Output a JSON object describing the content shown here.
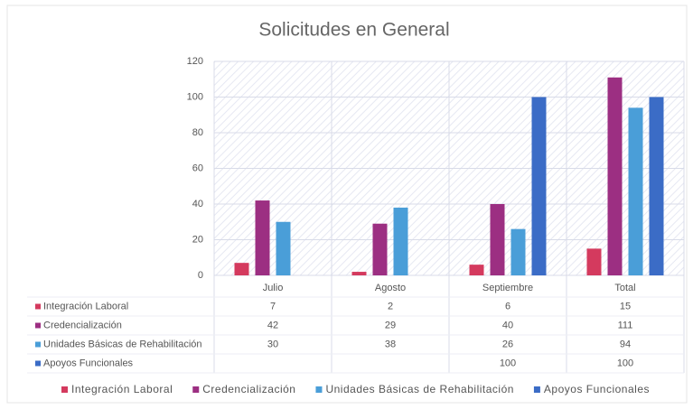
{
  "chart_data": {
    "type": "bar",
    "title": "Solicitudes en General",
    "categories": [
      "Julio",
      "Agosto",
      "Septiembre",
      "Total"
    ],
    "series": [
      {
        "name": "Integración Laboral",
        "color": "#d43a5e",
        "values": [
          7,
          2,
          6,
          15
        ]
      },
      {
        "name": "Credencialización",
        "color": "#9c2f82",
        "values": [
          42,
          29,
          40,
          111
        ]
      },
      {
        "name": "Unidades Básicas de Rehabilitación",
        "color": "#4a9ed8",
        "values": [
          30,
          38,
          26,
          94
        ]
      },
      {
        "name": "Apoyos Funcionales",
        "color": "#3b6cc6",
        "values": [
          null,
          null,
          100,
          100
        ]
      }
    ],
    "ylim": [
      0,
      120
    ],
    "yticks": [
      0,
      20,
      40,
      60,
      80,
      100,
      120
    ],
    "grid": true
  }
}
